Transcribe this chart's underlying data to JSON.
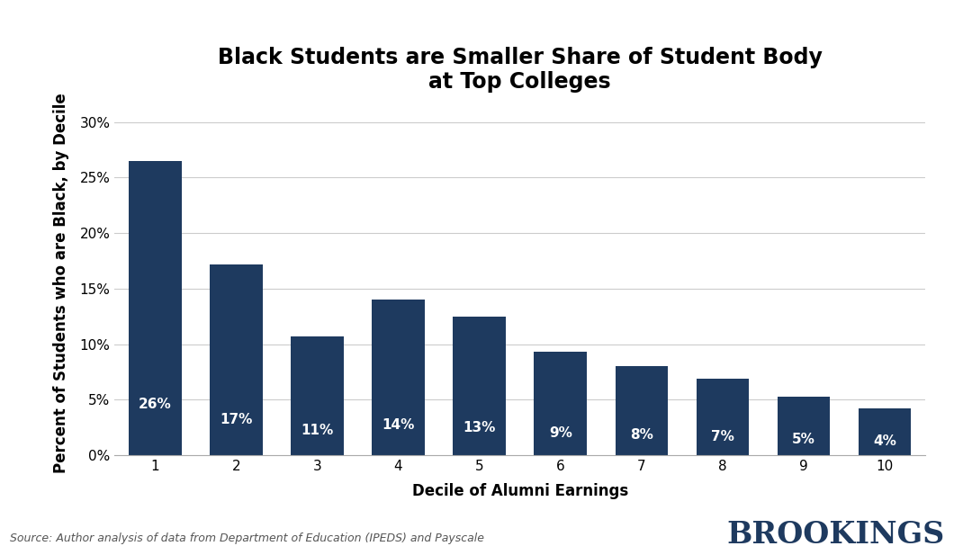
{
  "title": "Black Students are Smaller Share of Student Body\nat Top Colleges",
  "xlabel": "Decile of Alumni Earnings",
  "ylabel": "Percent of Students who are Black, by Decile",
  "categories": [
    1,
    2,
    3,
    4,
    5,
    6,
    7,
    8,
    9,
    10
  ],
  "values": [
    26.5,
    17.2,
    10.7,
    14.0,
    12.5,
    9.3,
    8.0,
    6.9,
    5.3,
    4.2
  ],
  "labels": [
    "26%",
    "17%",
    "11%",
    "14%",
    "13%",
    "9%",
    "8%",
    "7%",
    "5%",
    "4%"
  ],
  "bar_color": "#1e3a5f",
  "background_color": "#ffffff",
  "ylim": [
    0,
    31
  ],
  "yticks": [
    0,
    5,
    10,
    15,
    20,
    25,
    30
  ],
  "ytick_labels": [
    "0%",
    "5%",
    "10%",
    "15%",
    "20%",
    "25%",
    "30%"
  ],
  "source_text": "Source: Author analysis of data from Department of Education (IPEDS) and Payscale",
  "brookings_text": "BROOKINGS",
  "brookings_color": "#1e3a5f",
  "title_fontsize": 17,
  "axis_label_fontsize": 12,
  "tick_fontsize": 11,
  "bar_label_fontsize": 11,
  "source_fontsize": 9,
  "brookings_fontsize": 24
}
